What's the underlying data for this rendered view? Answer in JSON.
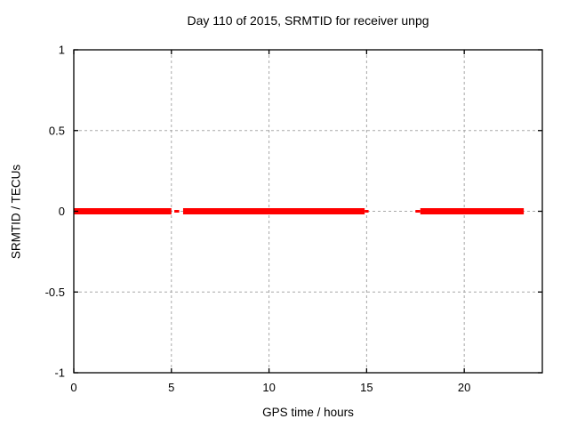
{
  "chart_data": {
    "type": "line",
    "title": "Day 110 of 2015, SRMTID for receiver unpg",
    "xlabel": "GPS time / hours",
    "ylabel": "SRMTID / TECUs",
    "xlim": [
      0,
      24
    ],
    "ylim": [
      -1,
      1
    ],
    "xtick_values": [
      0,
      5,
      10,
      15,
      20
    ],
    "xtick_labels": [
      "0",
      "5",
      "10",
      "15",
      "20"
    ],
    "ytick_values": [
      -1,
      -0.5,
      0,
      0.5,
      1
    ],
    "ytick_labels": [
      "-1",
      "-0.5",
      "0",
      "0.5",
      "1"
    ],
    "grid": true,
    "legend": "none",
    "series": [
      {
        "name": "SRMTID",
        "color": "#ff0000",
        "y_value": 0,
        "segments": [
          {
            "x0": 0.0,
            "x1": 5.0,
            "weight": "thick"
          },
          {
            "x0": 5.15,
            "x1": 5.4,
            "weight": "thin"
          },
          {
            "x0": 5.6,
            "x1": 14.9,
            "weight": "thick"
          },
          {
            "x0": 14.9,
            "x1": 15.1,
            "weight": "thin"
          },
          {
            "x0": 17.5,
            "x1": 17.75,
            "weight": "thin"
          },
          {
            "x0": 17.75,
            "x1": 23.05,
            "weight": "thick"
          }
        ]
      }
    ],
    "colors": {
      "background": "#ffffff",
      "border": "#000000",
      "grid": "#a8a8a8",
      "text": "#000000",
      "series": "#ff0000"
    }
  }
}
